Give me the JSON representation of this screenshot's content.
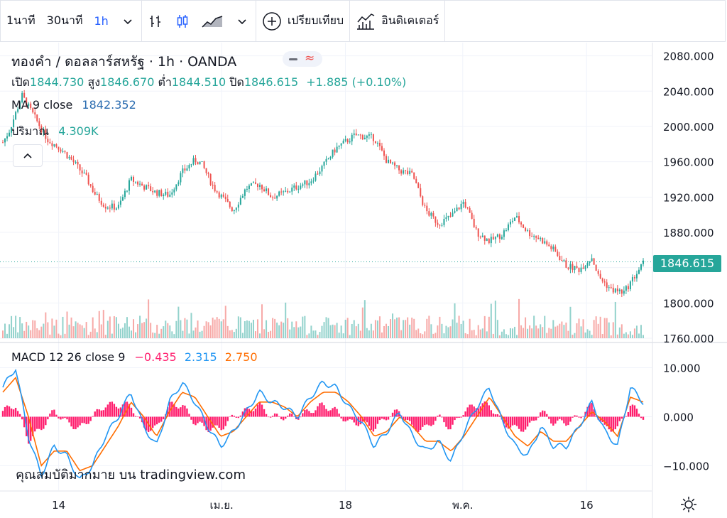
{
  "toolbar": {
    "interval_1m": "1นาที",
    "interval_30m": "30นาที",
    "interval_1h": "1h",
    "compare_label": "เปรียบเทียบ",
    "indicators_label": "อินดิเคเตอร์",
    "icons": [
      "chevron-down-icon",
      "bar-chart-icon",
      "candlestick-icon",
      "area-chart-icon",
      "chevron-down-icon",
      "plus-circle-icon",
      "indicators-icon"
    ]
  },
  "legend": {
    "symbol": "ทองคำ / ดอลลาร์สหรัฐ · 1h · OANDA",
    "open_label": "เปิด",
    "open": "1844.730",
    "high_label": "สูง",
    "high": "1846.670",
    "low_label": "ต่ำ",
    "low": "1844.510",
    "close_label": "ปิด",
    "close": "1846.615",
    "change": "+1.885 (+0.10%)",
    "ma_label": "MA 9 close",
    "ma_value": "1842.352",
    "volume_label": "ปริมาณ",
    "volume_value": "4.309K",
    "macd_label": "MACD 12 26 close 9",
    "macd_hist": "−0.435",
    "macd_line": "2.315",
    "macd_signal": "2.750",
    "watermark": "คุณสมบัติมากมาย บน tradingview.com"
  },
  "colors": {
    "up": "#26a69a",
    "down": "#ef5350",
    "macd_line": "#2196f3",
    "signal_line": "#ff6d00",
    "hist": "#ff1e6e",
    "last_price": "#26a69a"
  },
  "chart_data": [
    {
      "type": "candlestick",
      "title": "ทองคำ / ดอลลาร์สหรัฐ · 1h · OANDA",
      "x_ticks": [
        "14",
        "เม.ย.",
        "18",
        "พ.ค.",
        "16"
      ],
      "y_ticks": [
        "2080.000",
        "2040.000",
        "2000.000",
        "1960.000",
        "1920.000",
        "1880.000",
        "1840.000",
        "1800.000",
        "1760.000"
      ],
      "ylim": [
        1760,
        2095
      ],
      "last_price": "1846.615",
      "path_x": [
        0,
        0.01,
        0.03,
        0.05,
        0.07,
        0.09,
        0.11,
        0.13,
        0.145,
        0.16,
        0.18,
        0.2,
        0.22,
        0.24,
        0.26,
        0.28,
        0.3,
        0.31,
        0.33,
        0.36,
        0.38,
        0.4,
        0.42,
        0.44,
        0.46,
        0.48,
        0.5,
        0.52,
        0.55,
        0.58,
        0.6,
        0.62,
        0.64,
        0.66,
        0.68,
        0.7,
        0.72,
        0.74,
        0.76,
        0.78,
        0.8,
        0.82,
        0.84,
        0.86,
        0.88,
        0.9,
        0.92,
        0.93,
        0.95,
        0.97,
        1.0
      ],
      "path_y": [
        1982,
        1995,
        2035,
        2010,
        1985,
        1975,
        1960,
        1942,
        1922,
        1910,
        1908,
        1940,
        1932,
        1925,
        1922,
        1948,
        1962,
        1958,
        1930,
        1905,
        1930,
        1935,
        1920,
        1925,
        1932,
        1938,
        1955,
        1975,
        1990,
        1987,
        1960,
        1950,
        1945,
        1905,
        1890,
        1898,
        1915,
        1880,
        1870,
        1878,
        1898,
        1880,
        1872,
        1860,
        1842,
        1838,
        1852,
        1830,
        1815,
        1812,
        1845
      ],
      "volume_max_hint": "relative"
    },
    {
      "type": "line",
      "title": "MACD 12 26 close 9",
      "y_ticks": [
        "10.000",
        "0.000",
        "−10.000"
      ],
      "ylim": [
        -15,
        15
      ],
      "series": [
        {
          "name": "MACD",
          "values": [
            6,
            10,
            -4,
            -12,
            -6,
            -8,
            -13,
            -10,
            -4,
            0,
            5,
            -2,
            -6,
            3,
            7,
            3,
            -2,
            -6,
            -3,
            1,
            5,
            3,
            2,
            0,
            4,
            7,
            6,
            2,
            -1,
            -6,
            -3,
            1,
            -4,
            -7,
            -5,
            -9,
            -3,
            2,
            6,
            -1,
            -6,
            -8,
            -2,
            -6,
            -6,
            -2,
            3,
            -3,
            -6,
            6,
            3
          ]
        },
        {
          "name": "Signal",
          "values": [
            5,
            8,
            0,
            -10,
            -7,
            -7,
            -11,
            -10,
            -6,
            -2,
            3,
            0,
            -4,
            1,
            5,
            4,
            0,
            -4,
            -3,
            0,
            3,
            3,
            2,
            0,
            3,
            5,
            5,
            3,
            0,
            -4,
            -3,
            0,
            -2,
            -5,
            -5,
            -7,
            -4,
            0,
            4,
            0,
            -4,
            -6,
            -3,
            -5,
            -5,
            -2,
            1,
            -1,
            -4,
            4,
            3
          ]
        }
      ],
      "hist_hint": "difference"
    }
  ]
}
